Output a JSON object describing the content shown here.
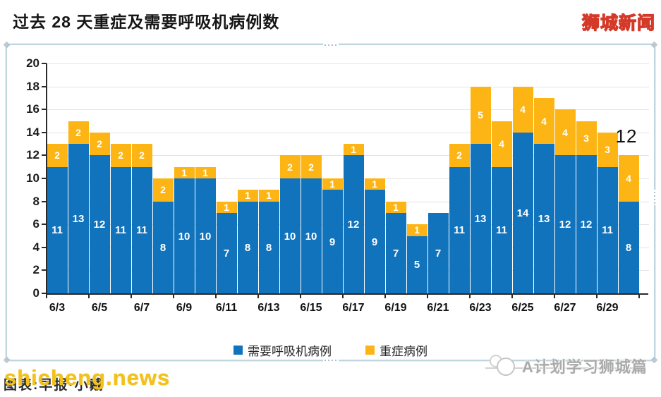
{
  "header": {
    "title": "过去 28 天重症及需要呼吸机病例数",
    "brand": "狮城新闻"
  },
  "chart_data": {
    "type": "bar",
    "stacked": true,
    "title": "过去 28 天重症及需要呼吸机病例数",
    "categories": [
      "6/3",
      "6/4",
      "6/5",
      "6/6",
      "6/7",
      "6/8",
      "6/9",
      "6/10",
      "6/11",
      "6/12",
      "6/13",
      "6/14",
      "6/15",
      "6/16",
      "6/17",
      "6/18",
      "6/19",
      "6/20",
      "6/21",
      "6/22",
      "6/23",
      "6/24",
      "6/25",
      "6/26",
      "6/27",
      "6/28",
      "6/29",
      "6/30"
    ],
    "x_tick_labels": [
      "6/3",
      "6/5",
      "6/7",
      "6/9",
      "6/11",
      "6/13",
      "6/15",
      "6/17",
      "6/19",
      "6/21",
      "6/23",
      "6/25",
      "6/27",
      "6/29"
    ],
    "x_tick_every": 2,
    "series": [
      {
        "name": "需要呼吸机病例",
        "color": "#1273BD",
        "values": [
          11,
          13,
          12,
          11,
          11,
          8,
          10,
          10,
          7,
          8,
          8,
          10,
          10,
          9,
          12,
          9,
          7,
          5,
          7,
          11,
          13,
          11,
          14,
          13,
          12,
          12,
          11,
          8
        ]
      },
      {
        "name": "重症病例",
        "color": "#FCB514",
        "values": [
          2,
          2,
          2,
          2,
          2,
          2,
          1,
          1,
          1,
          1,
          1,
          2,
          2,
          1,
          1,
          1,
          1,
          1,
          0,
          2,
          5,
          4,
          4,
          4,
          4,
          3,
          3,
          4
        ]
      }
    ],
    "ylim": [
      0,
      20
    ],
    "ytick_step": 2,
    "grid": true,
    "legend_position": "bottom",
    "annotation": {
      "text": "12",
      "bar_index": 27
    }
  },
  "legend": {
    "ventilator_label": "需要呼吸机病例",
    "severe_label": "重症病例"
  },
  "watermarks": {
    "credit_text": "图表:早报·小戴",
    "site": "shicheng.news",
    "right_text": "A计划学习狮城篇"
  },
  "colors": {
    "ventilator_blue": "#1273BD",
    "severe_yellow": "#FCB514",
    "brand_yellow": "#FFD400",
    "brand_red": "#D43A2A"
  }
}
